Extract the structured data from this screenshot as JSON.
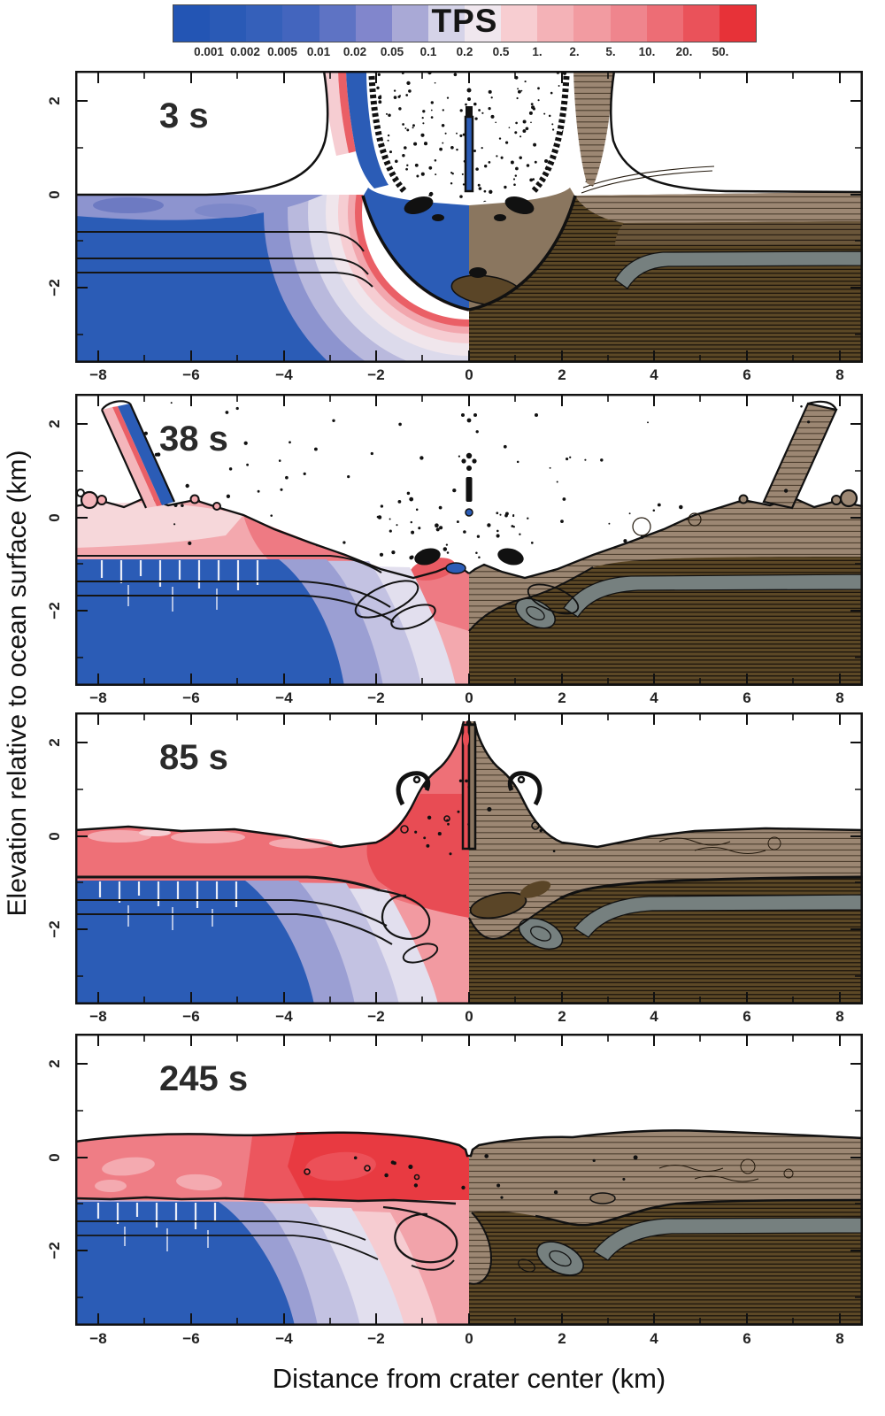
{
  "figure": {
    "colorbar": {
      "title": "TPS",
      "tick_labels": [
        "0.001",
        "0.002",
        "0.005",
        "0.01",
        "0.02",
        "0.05",
        "0.1",
        "0.2",
        "0.5",
        "1.",
        "2.",
        "5.",
        "10.",
        "20.",
        "50."
      ],
      "segment_colors": [
        "#2355b4",
        "#2a5ab6",
        "#3560ba",
        "#4365be",
        "#5e73c4",
        "#8186cc",
        "#a9a9d6",
        "#d5d3e8",
        "#f0e7ee",
        "#f7cdd1",
        "#f4b2b7",
        "#f29ba1",
        "#ef858d",
        "#ed6d75",
        "#ea525a",
        "#e73238"
      ]
    },
    "x_axis": {
      "label": "Distance from crater center (km)",
      "tick_labels": [
        "−8",
        "−6",
        "−4",
        "−2",
        "0",
        "2",
        "4",
        "6",
        "8"
      ]
    },
    "y_axis": {
      "label": "Elevation relative to ocean surface (km)",
      "tick_labels": [
        "2",
        "0",
        "−2"
      ]
    },
    "panels": [
      {
        "time_label": "3 s"
      },
      {
        "time_label": "38 s"
      },
      {
        "time_label": "85 s"
      },
      {
        "time_label": "245 s"
      }
    ],
    "colors": {
      "deep_blue_water": "#2b5cb6",
      "lavender_low_tps": "#9b9fd3",
      "pale_pink": "#f6cdd2",
      "red_high_tps": "#ea5f66",
      "strong_red": "#e83a41",
      "dark_brown_target": "#55431f",
      "tan_sediment": "#9c8773",
      "gray_layer": "#76807f",
      "outline_black": "#111111"
    }
  },
  "chart_data": {
    "type": "heatmap",
    "title": "TPS",
    "xlabel": "Distance from crater center (km)",
    "ylabel": "Elevation relative to ocean surface (km)",
    "xlim": [
      -8.5,
      8.5
    ],
    "ylim": [
      -3.6,
      2.65
    ],
    "x_ticks": [
      -8,
      -6,
      -4,
      -2,
      0,
      2,
      4,
      6,
      8
    ],
    "y_ticks": [
      2,
      0,
      -2
    ],
    "grid": false,
    "panels": [
      {
        "time_s": 3,
        "label": "3 s",
        "features": "transient cavity ~2.4 km deep, near-vertical ejecta curtains at ±2.5 km, speckled ejecta cone above crater, central jet"
      },
      {
        "time_s": 38,
        "label": "38 s",
        "features": "outward-tilted ejecta curtains near ±7.5 km, scattered ballistic ejecta, collapsing cavity with rim waves, central fallback column"
      },
      {
        "time_s": 85,
        "label": "85 s",
        "features": "central uplift mound with thin vertical jet at x=0 reaching panel top, curled overhangs at ±1 km, disturbed layers with folds"
      },
      {
        "time_s": 245,
        "label": "245 s",
        "features": "resurge deposit surface near +0.4 km with small notch at x=0, thick shocked layer over folded stratigraphy"
      }
    ],
    "colorbar": {
      "title": "TPS",
      "values": [
        0.001,
        0.002,
        0.005,
        0.01,
        0.02,
        0.05,
        0.1,
        0.2,
        0.5,
        1,
        2,
        5,
        10,
        20,
        50
      ],
      "colors": [
        "#2355b4",
        "#2a5ab6",
        "#3560ba",
        "#4365be",
        "#5e73c4",
        "#8186cc",
        "#a9a9d6",
        "#d5d3e8",
        "#f0e7ee",
        "#f7cdd1",
        "#f4b2b7",
        "#f29ba1",
        "#ef858d",
        "#ed6d75",
        "#ea525a",
        "#e73238"
      ],
      "position": "top"
    },
    "halves": {
      "left": "total plastic strain (TPS) color field: blue (low) through white to red (high)",
      "right": "material view: tan upper sediments, dark brown basement with tracer lines, gray intermediate layer"
    }
  }
}
